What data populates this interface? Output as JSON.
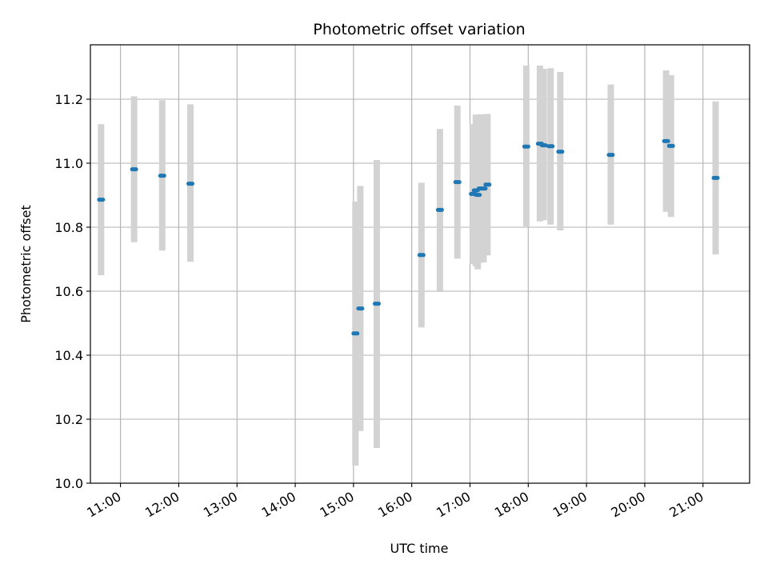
{
  "chart_data": {
    "type": "scatter",
    "title": "Photometric offset variation",
    "xlabel": "UTC time",
    "ylabel": "Photometric offset",
    "x_ticks": [
      "11:00",
      "12:00",
      "13:00",
      "14:00",
      "15:00",
      "16:00",
      "17:00",
      "18:00",
      "19:00",
      "20:00",
      "21:00"
    ],
    "y_ticks": [
      "10.0",
      "10.2",
      "10.4",
      "10.6",
      "10.8",
      "11.0",
      "11.2"
    ],
    "xlim": [
      "10:29",
      "21:48"
    ],
    "ylim": [
      10.0,
      11.37
    ],
    "grid": true,
    "colors": {
      "points": "#1f77b4",
      "errorbars": "#d3d3d3",
      "grid": "#b0b0b0"
    },
    "points": [
      {
        "x": "10:40",
        "y": 10.886,
        "lo": 10.65,
        "hi": 11.122
      },
      {
        "x": "11:14",
        "y": 10.981,
        "lo": 10.753,
        "hi": 11.209
      },
      {
        "x": "11:43",
        "y": 10.961,
        "lo": 10.727,
        "hi": 11.197
      },
      {
        "x": "12:12",
        "y": 10.936,
        "lo": 10.692,
        "hi": 11.184
      },
      {
        "x": "15:02",
        "y": 10.468,
        "lo": 10.055,
        "hi": 10.88
      },
      {
        "x": "15:07",
        "y": 10.546,
        "lo": 10.163,
        "hi": 10.929
      },
      {
        "x": "15:24",
        "y": 10.561,
        "lo": 10.11,
        "hi": 11.01
      },
      {
        "x": "16:10",
        "y": 10.713,
        "lo": 10.487,
        "hi": 10.939
      },
      {
        "x": "16:29",
        "y": 10.854,
        "lo": 10.601,
        "hi": 11.107
      },
      {
        "x": "16:47",
        "y": 10.941,
        "lo": 10.702,
        "hi": 11.18
      },
      {
        "x": "17:03",
        "y": 10.904,
        "lo": 10.685,
        "hi": 11.122
      },
      {
        "x": "17:06",
        "y": 10.915,
        "lo": 10.678,
        "hi": 11.152
      },
      {
        "x": "17:08",
        "y": 10.901,
        "lo": 10.668,
        "hi": 11.134
      },
      {
        "x": "17:11",
        "y": 10.921,
        "lo": 10.689,
        "hi": 11.153
      },
      {
        "x": "17:14",
        "y": 10.921,
        "lo": 10.69,
        "hi": 11.152
      },
      {
        "x": "17:18",
        "y": 10.933,
        "lo": 10.712,
        "hi": 11.154
      },
      {
        "x": "17:58",
        "y": 11.052,
        "lo": 10.8,
        "hi": 11.305
      },
      {
        "x": "18:12",
        "y": 11.061,
        "lo": 10.818,
        "hi": 11.305
      },
      {
        "x": "18:16",
        "y": 11.056,
        "lo": 10.822,
        "hi": 11.295
      },
      {
        "x": "18:23",
        "y": 11.053,
        "lo": 10.808,
        "hi": 11.297
      },
      {
        "x": "18:33",
        "y": 11.036,
        "lo": 10.79,
        "hi": 11.285
      },
      {
        "x": "19:25",
        "y": 11.026,
        "lo": 10.808,
        "hi": 11.246
      },
      {
        "x": "20:22",
        "y": 11.069,
        "lo": 10.848,
        "hi": 11.29
      },
      {
        "x": "20:27",
        "y": 11.054,
        "lo": 10.832,
        "hi": 11.275
      },
      {
        "x": "21:13",
        "y": 10.954,
        "lo": 10.715,
        "hi": 11.193
      }
    ]
  }
}
